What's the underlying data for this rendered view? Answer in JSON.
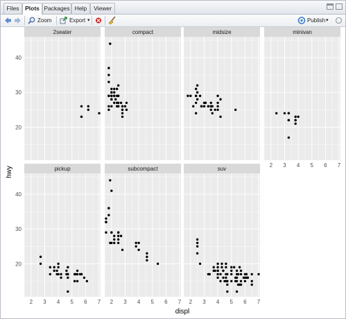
{
  "tabs": [
    {
      "label": "Files",
      "active": false
    },
    {
      "label": "Plots",
      "active": true
    },
    {
      "label": "Packages",
      "active": false
    },
    {
      "label": "Help",
      "active": false
    },
    {
      "label": "Viewer",
      "active": false
    }
  ],
  "toolbar": {
    "zoom_label": "Zoom",
    "export_label": "Export",
    "publish_label": "Publish",
    "dropdown_glyph": "▾"
  },
  "icons": {
    "back": "back-arrow-icon",
    "forward": "forward-arrow-icon",
    "zoom": "magnifier-icon",
    "export": "export-icon",
    "remove": "remove-plot-icon",
    "clear": "broom-icon",
    "publish": "publish-icon",
    "refresh": "refresh-icon"
  },
  "colors": {
    "panel_bg": "#ebebeb",
    "strip_bg": "#d9d9d9",
    "grid": "#ffffff",
    "point": "#000000",
    "remove_icon": "#cc2222"
  },
  "chart_data": {
    "type": "scatter",
    "xlabel": "displ",
    "ylabel": "hwy",
    "xlim": [
      1.5,
      7.1
    ],
    "ylim": [
      10.5,
      46.0
    ],
    "x_ticks": [
      2,
      3,
      4,
      5,
      6,
      7
    ],
    "y_ticks": [
      20,
      30,
      40
    ],
    "grid": true,
    "facets": [
      {
        "name": "2seater",
        "points": [
          [
            5.7,
            26
          ],
          [
            5.7,
            23
          ],
          [
            6.2,
            26
          ],
          [
            6.2,
            25
          ],
          [
            7.0,
            24
          ]
        ]
      },
      {
        "name": "compact",
        "points": [
          [
            1.8,
            29
          ],
          [
            1.8,
            29
          ],
          [
            2.0,
            31
          ],
          [
            2.0,
            30
          ],
          [
            2.8,
            26
          ],
          [
            2.8,
            26
          ],
          [
            3.1,
            27
          ],
          [
            1.8,
            26
          ],
          [
            1.8,
            25
          ],
          [
            2.0,
            28
          ],
          [
            2.0,
            28
          ],
          [
            2.8,
            25
          ],
          [
            2.8,
            25
          ],
          [
            3.1,
            25
          ],
          [
            3.1,
            25
          ],
          [
            2.2,
            31
          ],
          [
            2.2,
            29
          ],
          [
            2.4,
            31
          ],
          [
            2.4,
            27
          ],
          [
            3.0,
            26
          ],
          [
            1.8,
            33
          ],
          [
            1.8,
            35
          ],
          [
            1.8,
            37
          ],
          [
            1.9,
            44
          ],
          [
            1.9,
            44
          ],
          [
            2.0,
            29
          ],
          [
            2.0,
            26
          ],
          [
            2.0,
            29
          ],
          [
            2.0,
            29
          ],
          [
            2.5,
            29
          ],
          [
            2.5,
            29
          ],
          [
            2.8,
            24
          ],
          [
            2.8,
            23
          ],
          [
            2.0,
            28
          ],
          [
            2.2,
            27
          ],
          [
            2.2,
            29
          ],
          [
            2.4,
            26
          ],
          [
            2.4,
            29
          ],
          [
            2.5,
            26
          ],
          [
            2.5,
            26
          ],
          [
            2.5,
            32
          ],
          [
            2.5,
            27
          ],
          [
            2.2,
            30
          ],
          [
            2.0,
            30
          ],
          [
            2.7,
            27
          ],
          [
            2.3,
            28
          ]
        ]
      },
      {
        "name": "midsize",
        "points": [
          [
            2.8,
            26
          ],
          [
            3.1,
            27
          ],
          [
            4.2,
            23
          ],
          [
            2.4,
            29
          ],
          [
            2.4,
            29
          ],
          [
            3.1,
            27
          ],
          [
            3.5,
            26
          ],
          [
            3.6,
            26
          ],
          [
            1.8,
            29
          ],
          [
            2.0,
            29
          ],
          [
            2.4,
            31
          ],
          [
            2.5,
            32
          ],
          [
            2.5,
            30
          ],
          [
            2.8,
            26
          ],
          [
            2.8,
            26
          ],
          [
            3.0,
            26
          ],
          [
            3.0,
            26
          ],
          [
            3.3,
            26
          ],
          [
            3.3,
            26
          ],
          [
            3.5,
            26
          ],
          [
            3.5,
            26
          ],
          [
            2.5,
            28
          ],
          [
            2.7,
            29
          ],
          [
            3.0,
            27
          ],
          [
            3.5,
            27
          ],
          [
            3.5,
            25
          ],
          [
            4.0,
            25
          ],
          [
            4.0,
            26
          ],
          [
            4.2,
            28
          ],
          [
            4.0,
            27
          ],
          [
            4.0,
            29
          ],
          [
            5.3,
            25
          ],
          [
            2.2,
            26
          ],
          [
            2.4,
            27
          ],
          [
            2.4,
            24
          ],
          [
            3.8,
            25
          ],
          [
            3.6,
            24
          ]
        ]
      },
      {
        "name": "minivan",
        "points": [
          [
            2.4,
            24
          ],
          [
            3.0,
            24
          ],
          [
            3.3,
            22
          ],
          [
            3.3,
            22
          ],
          [
            3.3,
            24
          ],
          [
            3.3,
            24
          ],
          [
            3.3,
            17
          ],
          [
            3.8,
            22
          ],
          [
            3.8,
            21
          ],
          [
            3.8,
            23
          ],
          [
            4.0,
            23
          ],
          [
            3.8,
            22
          ]
        ]
      },
      {
        "name": "pickup",
        "points": [
          [
            2.7,
            20
          ],
          [
            2.7,
            22
          ],
          [
            3.4,
            19
          ],
          [
            3.4,
            17
          ],
          [
            3.7,
            18
          ],
          [
            3.7,
            19
          ],
          [
            3.9,
            17
          ],
          [
            3.9,
            18
          ],
          [
            4.0,
            17
          ],
          [
            4.0,
            19
          ],
          [
            4.0,
            20
          ],
          [
            4.7,
            17
          ],
          [
            4.7,
            17
          ],
          [
            4.7,
            16
          ],
          [
            4.7,
            12
          ],
          [
            4.7,
            17
          ],
          [
            4.7,
            19
          ],
          [
            5.2,
            15
          ],
          [
            5.2,
            15
          ],
          [
            5.2,
            17
          ],
          [
            5.2,
            17
          ],
          [
            5.7,
            17
          ],
          [
            5.9,
            16
          ],
          [
            4.6,
            17
          ],
          [
            5.4,
            17
          ],
          [
            5.4,
            15
          ],
          [
            4.2,
            17
          ],
          [
            4.2,
            16
          ],
          [
            5.7,
            17
          ],
          [
            6.1,
            15
          ],
          [
            4.6,
            18
          ],
          [
            5.4,
            18
          ],
          [
            5.3,
            17
          ],
          [
            5.6,
            17
          ]
        ]
      },
      {
        "name": "subcompact",
        "points": [
          [
            3.8,
            26
          ],
          [
            3.8,
            25
          ],
          [
            4.0,
            26
          ],
          [
            4.0,
            24
          ],
          [
            4.6,
            23
          ],
          [
            4.6,
            22
          ],
          [
            4.6,
            21
          ],
          [
            5.4,
            20
          ],
          [
            1.6,
            33
          ],
          [
            1.6,
            32
          ],
          [
            1.6,
            32
          ],
          [
            1.6,
            29
          ],
          [
            1.6,
            32
          ],
          [
            1.8,
            34
          ],
          [
            1.8,
            36
          ],
          [
            1.8,
            36
          ],
          [
            2.0,
            29
          ],
          [
            2.0,
            26
          ],
          [
            1.9,
            44
          ],
          [
            2.0,
            29
          ],
          [
            2.0,
            41
          ],
          [
            2.5,
            28
          ],
          [
            2.5,
            26
          ],
          [
            2.5,
            27
          ],
          [
            2.8,
            24
          ],
          [
            2.2,
            28
          ],
          [
            2.2,
            27
          ],
          [
            2.5,
            29
          ],
          [
            2.5,
            29
          ],
          [
            2.2,
            26
          ],
          [
            1.9,
            26
          ],
          [
            2.7,
            28
          ]
        ]
      },
      {
        "name": "suv",
        "points": [
          [
            2.5,
            25
          ],
          [
            2.5,
            27
          ],
          [
            2.5,
            26
          ],
          [
            2.5,
            23
          ],
          [
            2.7,
            20
          ],
          [
            3.7,
            19
          ],
          [
            4.0,
            19
          ],
          [
            4.0,
            18
          ],
          [
            4.2,
            17
          ],
          [
            4.4,
            18
          ],
          [
            4.6,
            17
          ],
          [
            4.6,
            20
          ],
          [
            5.0,
            17
          ],
          [
            5.4,
            17
          ],
          [
            5.4,
            18
          ],
          [
            5.7,
            17
          ],
          [
            5.9,
            16
          ],
          [
            6.0,
            17
          ],
          [
            6.1,
            17
          ],
          [
            6.5,
            17
          ],
          [
            4.0,
            17
          ],
          [
            4.6,
            19
          ],
          [
            4.7,
            17
          ],
          [
            5.0,
            15
          ],
          [
            5.4,
            15
          ],
          [
            4.7,
            15
          ],
          [
            4.7,
            15
          ],
          [
            5.7,
            18
          ],
          [
            6.5,
            15
          ],
          [
            3.3,
            17
          ],
          [
            4.0,
            16
          ],
          [
            4.6,
            15
          ],
          [
            4.2,
            15
          ],
          [
            4.7,
            14
          ],
          [
            5.3,
            15
          ],
          [
            5.3,
            16
          ],
          [
            5.7,
            14
          ],
          [
            6.2,
            16
          ],
          [
            4.4,
            18
          ],
          [
            6.1,
            16
          ],
          [
            5.4,
            12
          ],
          [
            4.0,
            20
          ],
          [
            4.0,
            18
          ],
          [
            3.7,
            18
          ],
          [
            5.7,
            15
          ],
          [
            3.4,
            17
          ],
          [
            4.6,
            16
          ],
          [
            6.5,
            14
          ],
          [
            5.4,
            16
          ],
          [
            4.3,
            20
          ],
          [
            4.3,
            19
          ],
          [
            5.2,
            19
          ],
          [
            4.7,
            12
          ],
          [
            6.0,
            15
          ],
          [
            5.5,
            14
          ],
          [
            6.1,
            17
          ],
          [
            3.8,
            18
          ],
          [
            5.0,
            19
          ],
          [
            5.6,
            19
          ],
          [
            6.0,
            16
          ],
          [
            5.6,
            14
          ],
          [
            4.5,
            15
          ],
          [
            5.0,
            18
          ],
          [
            4.4,
            16
          ],
          [
            5.5,
            17
          ],
          [
            6.2,
            16
          ],
          [
            7.0,
            17
          ]
        ]
      }
    ]
  }
}
